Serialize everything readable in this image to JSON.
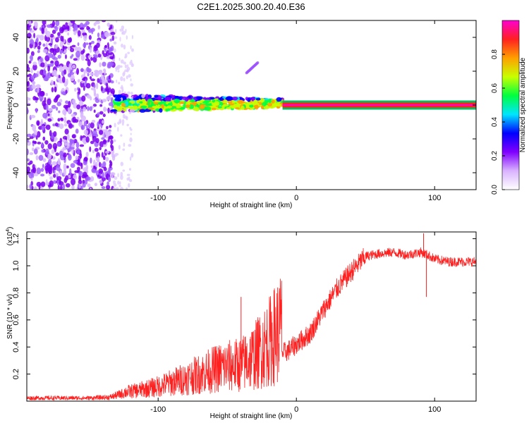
{
  "chart_data": [
    {
      "type": "heatmap",
      "title": "C2E1.2025.300.20.40.E36",
      "xlabel": "Height of straight line (km)",
      "ylabel": "Frequency (Hz)",
      "xlim": [
        -195,
        130
      ],
      "ylim": [
        -50,
        50
      ],
      "xticks": [
        -100,
        0,
        100
      ],
      "yticks": [
        -40,
        -20,
        0,
        20,
        40
      ],
      "colorbar": {
        "label": "Normalized spectral amplitude",
        "range": [
          0,
          1
        ],
        "ticks": [
          "0.0",
          "0.2",
          "0.4",
          "0.6",
          "0.8"
        ],
        "colors": [
          "#ffffff",
          "#d9b3ff",
          "#8000ff",
          "#0000ff",
          "#00e5ff",
          "#00ff40",
          "#c8ff00",
          "#ffa000",
          "#ff2020",
          "#ff00d0"
        ]
      },
      "features": [
        {
          "name": "broadband noise region",
          "x_range": [
            -195,
            -132
          ],
          "freq_range": [
            -50,
            50
          ],
          "amplitude": 0.15
        },
        {
          "name": "sparse noise fringe",
          "x_range": [
            -132,
            -118
          ],
          "freq_range": [
            -50,
            50
          ],
          "amplitude": 0.05
        },
        {
          "name": "signal band",
          "x_range": [
            -132,
            -10
          ],
          "freq_range": [
            -8,
            10
          ],
          "amplitude": 0.45
        },
        {
          "name": "spurious line",
          "x_range": [
            -36,
            -28
          ],
          "freq_range": [
            19,
            25
          ],
          "amplitude": 0.25
        },
        {
          "name": "steady tone",
          "x_range": [
            -10,
            130
          ],
          "freq_range": [
            -1.5,
            1.5
          ],
          "amplitude": 0.95
        }
      ]
    },
    {
      "type": "line",
      "xlabel": "Height of straight line (km)",
      "ylabel": "SNR (10 * v/v)",
      "scale_label": "(x10",
      "scale_exponent": "4",
      "scale_suffix": ")",
      "xlim": [
        -195,
        130
      ],
      "ylim": [
        0,
        1.25
      ],
      "xticks": [
        -100,
        0,
        100
      ],
      "yticks": [
        "0.2",
        "0.4",
        "0.6",
        "0.8",
        "1.0",
        "1.2"
      ],
      "series": [
        {
          "name": "SNR",
          "color": "#ff2020",
          "x": [
            -195,
            -170,
            -150,
            -135,
            -125,
            -115,
            -100,
            -85,
            -70,
            -55,
            -40,
            -30,
            -20,
            -12,
            -5,
            0,
            10,
            20,
            30,
            40,
            50,
            60,
            70,
            80,
            90,
            95,
            100,
            110,
            120,
            130
          ],
          "y": [
            0.02,
            0.02,
            0.02,
            0.025,
            0.05,
            0.06,
            0.08,
            0.11,
            0.14,
            0.17,
            0.18,
            0.22,
            0.28,
            0.34,
            0.38,
            0.42,
            0.5,
            0.68,
            0.84,
            0.96,
            1.07,
            1.09,
            1.1,
            1.08,
            1.1,
            1.08,
            1.05,
            1.03,
            1.03,
            1.03
          ]
        }
      ],
      "spikes": [
        {
          "x": 92,
          "y": 1.24
        },
        {
          "x": 94,
          "y": 0.77
        },
        {
          "x": -40,
          "y": 0.77
        },
        {
          "x": -18,
          "y": 0.66
        }
      ]
    }
  ]
}
